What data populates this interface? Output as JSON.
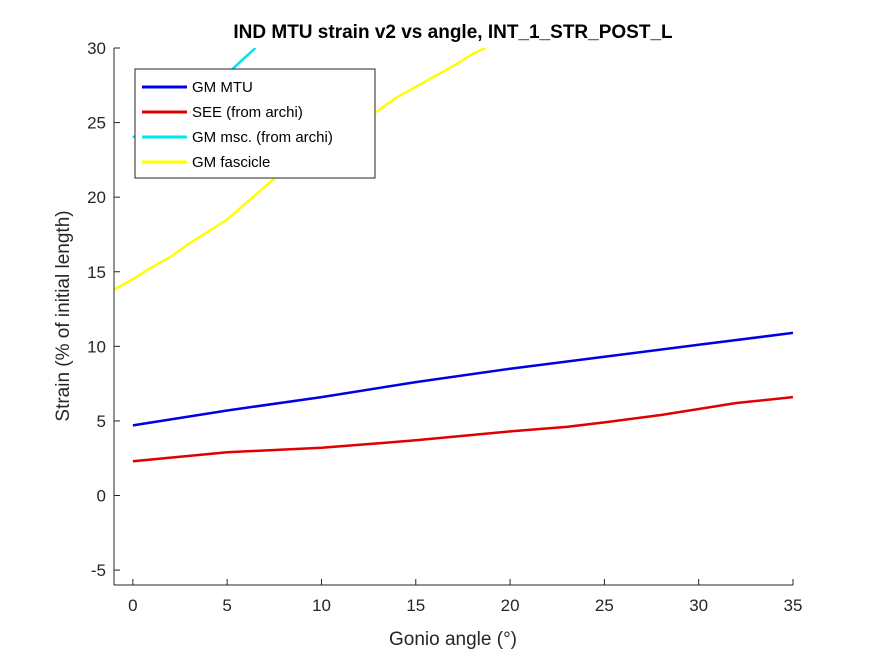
{
  "chart_data": {
    "type": "line",
    "title": "IND MTU strain v2 vs angle, INT_1_STR_POST_L",
    "xlabel": "Gonio angle (°)",
    "ylabel": "Strain (% of initial length)",
    "xlim": [
      -1,
      35
    ],
    "ylim": [
      -6,
      30
    ],
    "xticks": [
      0,
      5,
      10,
      15,
      20,
      25,
      30,
      35
    ],
    "yticks": [
      -5,
      0,
      5,
      10,
      15,
      20,
      25,
      30
    ],
    "legend_position": "top-left",
    "series": [
      {
        "name": "GM MTU",
        "color": "#0000e0",
        "x": [
          0,
          5,
          10,
          15,
          20,
          25,
          30,
          35
        ],
        "y": [
          4.7,
          5.7,
          6.6,
          7.6,
          8.5,
          9.3,
          10.1,
          10.9
        ]
      },
      {
        "name": "SEE (from archi)",
        "color": "#e00000",
        "x": [
          0,
          5,
          10,
          15,
          20,
          23,
          25,
          28,
          30,
          32,
          35
        ],
        "y": [
          2.3,
          2.9,
          3.2,
          3.7,
          4.3,
          4.6,
          4.9,
          5.4,
          5.8,
          6.2,
          6.6
        ]
      },
      {
        "name": "GM msc. (from archi)",
        "color": "#00e5ee",
        "x": [
          0,
          5.2,
          5.8,
          6.5
        ],
        "y": [
          24.0,
          28.5,
          29.2,
          30.0
        ]
      },
      {
        "name": "GM fascicle",
        "color": "#ffff00",
        "x": [
          -1,
          0,
          1,
          2,
          3,
          4,
          5,
          6,
          7,
          8,
          9,
          10,
          11,
          12,
          13,
          14,
          15,
          16,
          17,
          18,
          18.7
        ],
        "y": [
          13.8,
          14.5,
          15.3,
          16.0,
          16.9,
          17.7,
          18.5,
          19.6,
          20.7,
          21.8,
          22.6,
          23.6,
          24.4,
          25.1,
          25.8,
          26.7,
          27.4,
          28.1,
          28.8,
          29.6,
          30.0
        ]
      }
    ]
  }
}
